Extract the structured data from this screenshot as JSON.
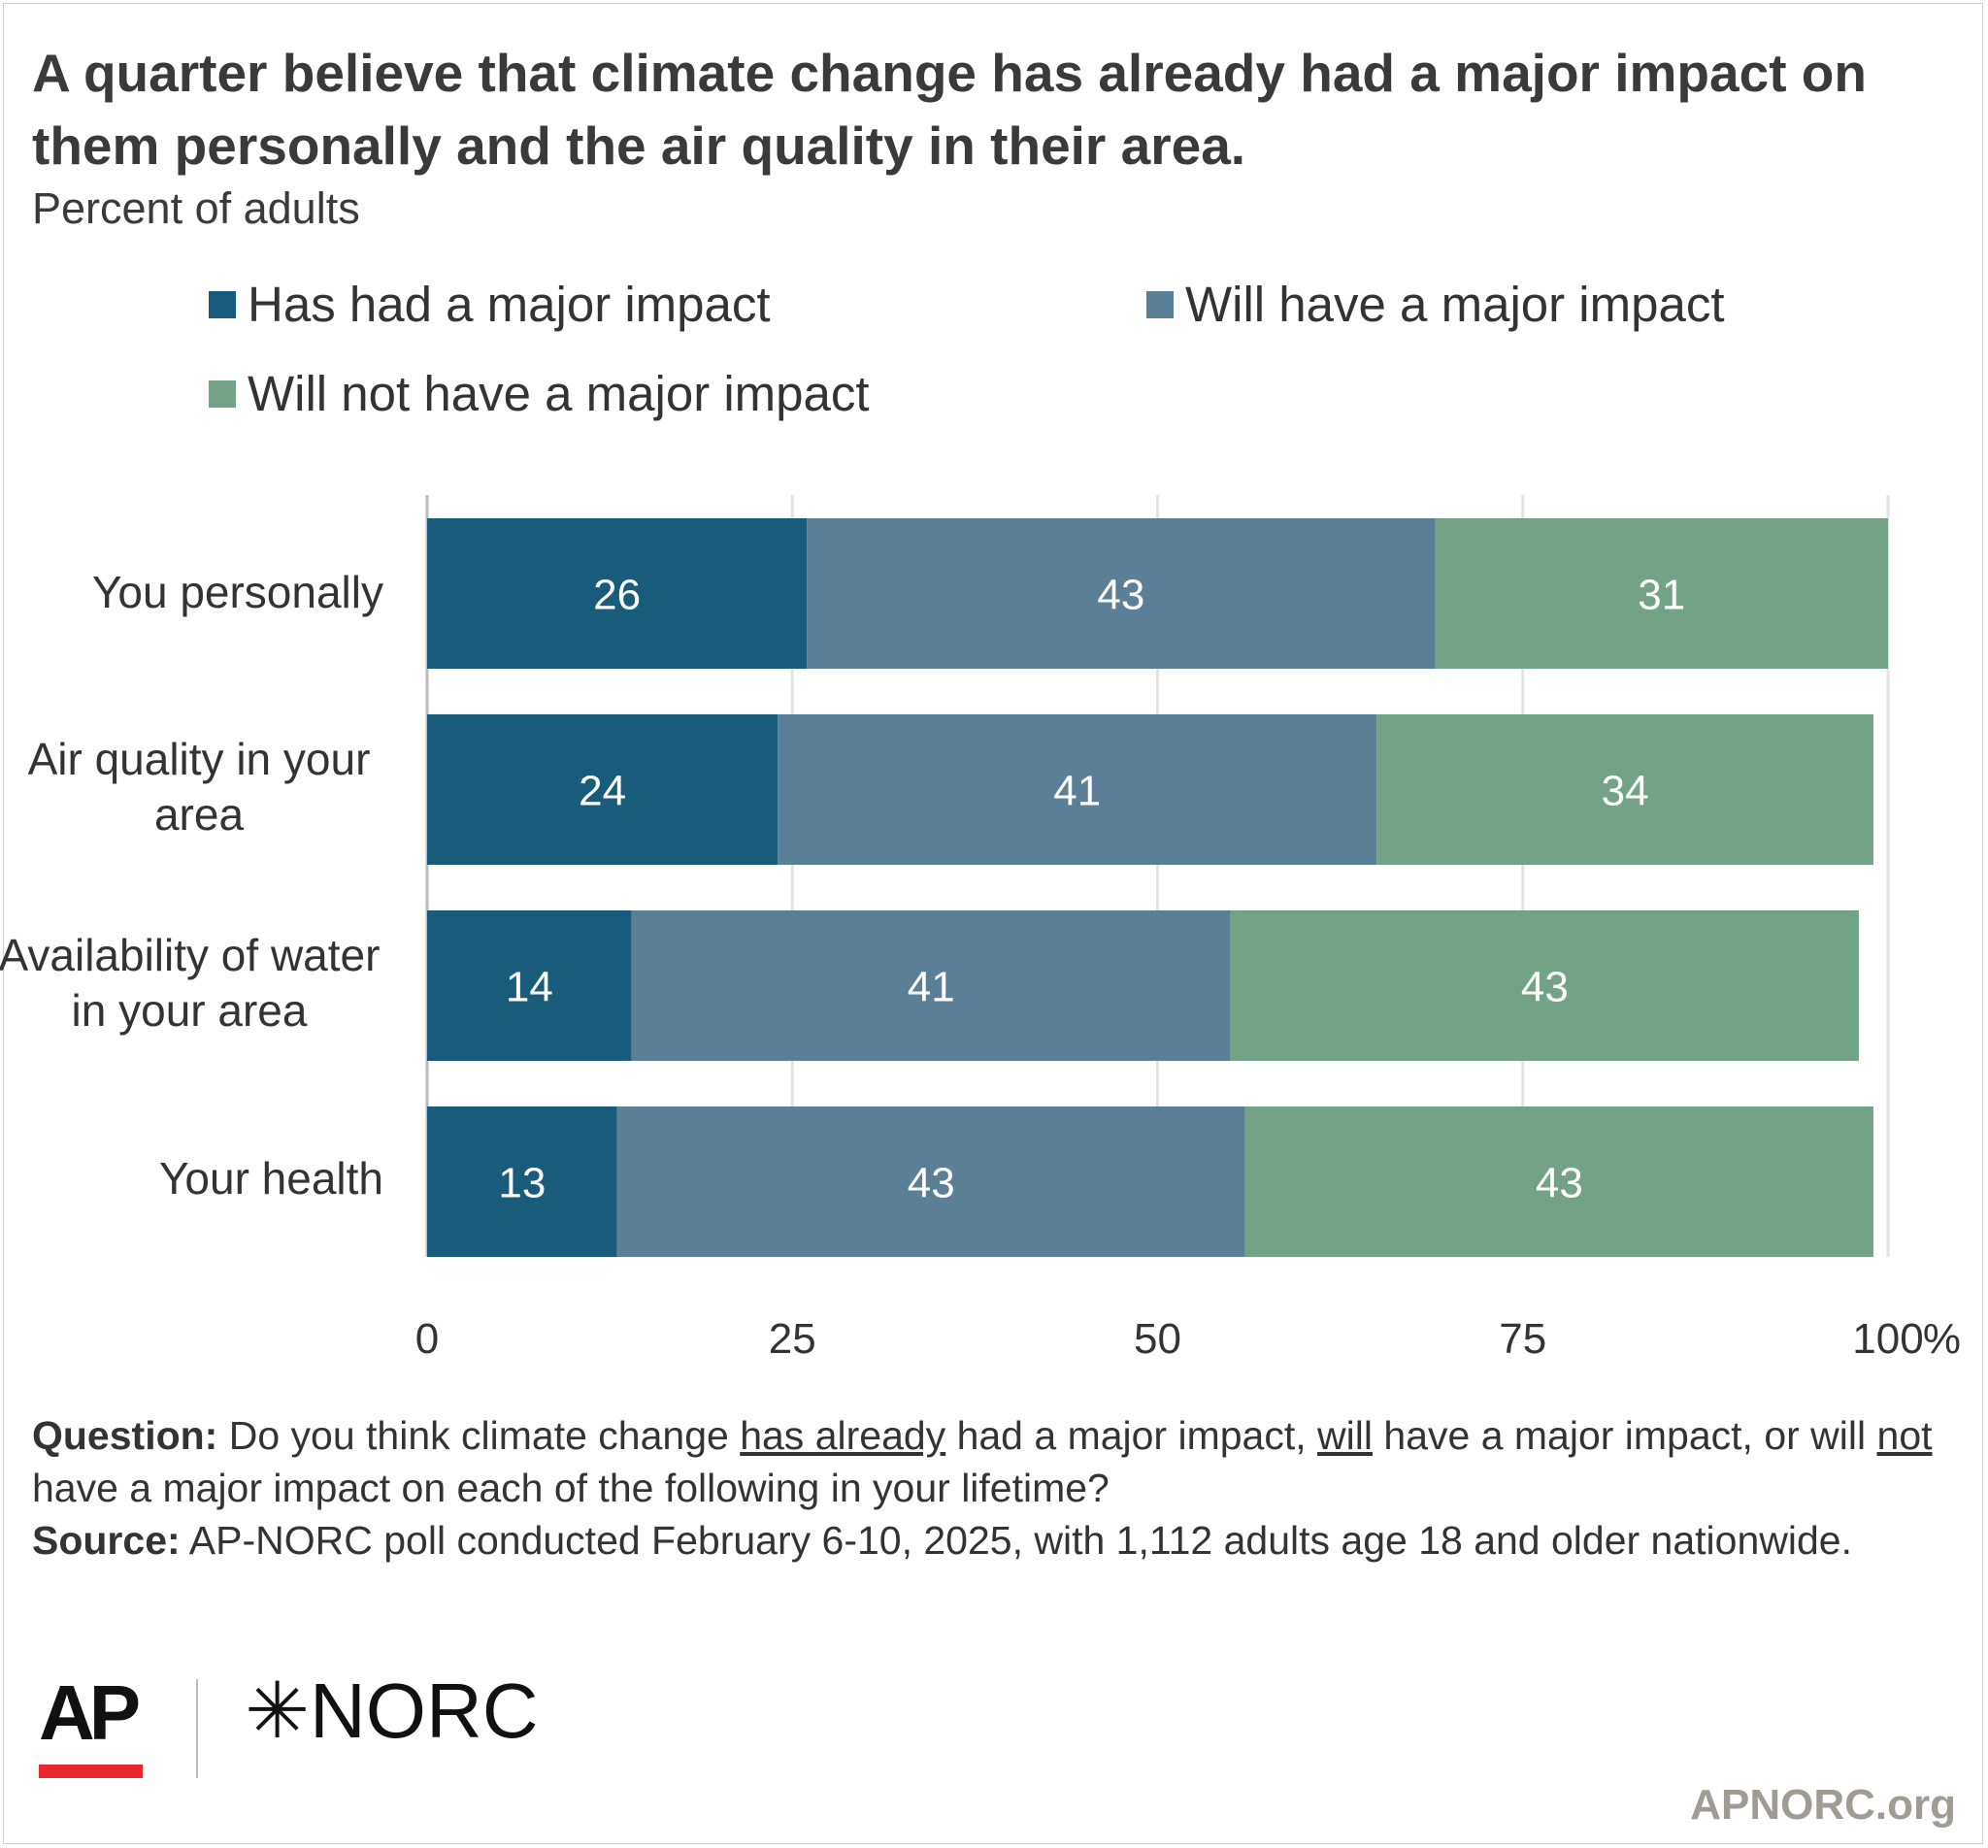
{
  "title": "A quarter believe that climate change has already had a major impact on them personally and the air quality in their area.",
  "subtitle": "Percent of adults",
  "legend": [
    {
      "label": "Has had a major impact",
      "color": "#185b7b"
    },
    {
      "label": "Will have a major impact",
      "color": "#5b7f96"
    },
    {
      "label": "Will not have a major impact",
      "color": "#72a386"
    }
  ],
  "chart_data": {
    "type": "bar",
    "orientation": "horizontal",
    "stacked": true,
    "categories": [
      "You personally",
      "Air quality in your area",
      "Availability of water in your area",
      "Your health"
    ],
    "series": [
      {
        "name": "Has had a major impact",
        "values": [
          26,
          24,
          14,
          13
        ],
        "color": "#185b7b"
      },
      {
        "name": "Will have a major impact",
        "values": [
          43,
          41,
          41,
          43
        ],
        "color": "#5b7f96"
      },
      {
        "name": "Will not have a major impact",
        "values": [
          31,
          34,
          43,
          43
        ],
        "color": "#72a386"
      }
    ],
    "xlim": [
      0,
      100
    ],
    "xticks": [
      "0",
      "25",
      "50",
      "75",
      "100"
    ],
    "x_unit": "%",
    "grid": true,
    "legend_position": "top"
  },
  "notes": {
    "question_label": "Question:",
    "question_part1": "Do you think climate change",
    "question_has_already": "has already",
    "question_part2": "had a major impact,",
    "question_will": "will",
    "question_part3": "have a major impact, or will",
    "question_not": "not",
    "question_part4": "have a major impact on each of the following in your lifetime?",
    "source_label": "Source:",
    "source_text": "AP-NORC poll conducted February 6-10, 2025, with 1,112 adults age 18 and older nationwide."
  },
  "logos": {
    "ap": "AP",
    "norc": "NORC",
    "norc_mark": "✳"
  },
  "site": "APNORC.org"
}
